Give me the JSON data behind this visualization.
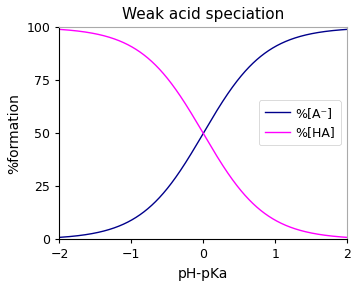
{
  "title": "Weak acid speciation",
  "xlabel": "pH-pKa",
  "ylabel": "%formation",
  "xlim": [
    -2,
    2
  ],
  "ylim": [
    0,
    100
  ],
  "xticks": [
    -2,
    -1,
    0,
    1,
    2
  ],
  "yticks": [
    0,
    25,
    50,
    75,
    100
  ],
  "color_A": "#00008B",
  "color_HA": "#FF00FF",
  "legend_A": "%[A⁻]",
  "legend_HA": "%[HA]",
  "background_color": "#ffffff",
  "plot_bg_color": "#ffffff",
  "title_fontsize": 11,
  "axis_label_fontsize": 10,
  "tick_fontsize": 9,
  "legend_fontsize": 9,
  "line_width": 1.0
}
